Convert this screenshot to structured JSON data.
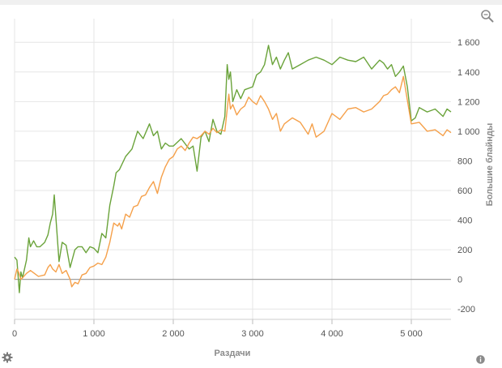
{
  "icons": {
    "zoom": "zoom-icon",
    "settings": "gear-icon",
    "info": "info-icon"
  },
  "colors": {
    "green": "#6aa33a",
    "orange": "#f5a04a",
    "zero_line": "#a0a0a0",
    "grid": "#e6e6e6"
  },
  "chart_data": {
    "type": "line",
    "title": "",
    "xlabel": "Раздачи",
    "ylabel": "Большие блайнды",
    "xlim": [
      0,
      5500
    ],
    "ylim": [
      -270,
      1760
    ],
    "x_ticks": [
      0,
      1000,
      2000,
      3000,
      4000,
      5000
    ],
    "x_tick_labels": [
      "0",
      "1 000",
      "2 000",
      "3 000",
      "4 000",
      "5 000"
    ],
    "y_ticks": [
      -200,
      0,
      200,
      400,
      600,
      800,
      1000,
      1200,
      1400,
      1600
    ],
    "y_tick_labels": [
      "-200",
      "0",
      "200",
      "400",
      "600",
      "800",
      "1 000",
      "1 200",
      "1 400",
      "1 600"
    ],
    "y_axis_side": "right",
    "grid": true,
    "legend": "none",
    "series": [
      {
        "color": "#6aa33a",
        "x": [
          0,
          30,
          60,
          80,
          100,
          150,
          180,
          200,
          240,
          280,
          320,
          380,
          420,
          450,
          480,
          500,
          520,
          560,
          600,
          650,
          700,
          760,
          800,
          850,
          900,
          950,
          1000,
          1050,
          1100,
          1150,
          1200,
          1250,
          1280,
          1320,
          1400,
          1480,
          1550,
          1620,
          1700,
          1750,
          1800,
          1850,
          1900,
          1950,
          2000,
          2100,
          2200,
          2250,
          2300,
          2350,
          2400,
          2450,
          2500,
          2550,
          2600,
          2650,
          2680,
          2700,
          2720,
          2750,
          2800,
          2850,
          2900,
          3000,
          3050,
          3100,
          3150,
          3200,
          3250,
          3300,
          3350,
          3400,
          3450,
          3500,
          3600,
          3700,
          3800,
          3900,
          4000,
          4100,
          4200,
          4300,
          4400,
          4500,
          4600,
          4650,
          4700,
          4750,
          4800,
          4850,
          4900,
          4950,
          5000,
          5050,
          5100,
          5200,
          5300,
          5400,
          5450,
          5500
        ],
        "y": [
          150,
          130,
          -90,
          50,
          10,
          130,
          280,
          220,
          260,
          220,
          220,
          250,
          300,
          380,
          440,
          570,
          420,
          120,
          250,
          230,
          80,
          200,
          220,
          220,
          180,
          220,
          210,
          180,
          310,
          280,
          500,
          630,
          720,
          740,
          830,
          880,
          1000,
          950,
          1050,
          970,
          1000,
          880,
          920,
          900,
          900,
          950,
          880,
          900,
          730,
          960,
          1000,
          930,
          1080,
          1000,
          980,
          1100,
          1450,
          1350,
          1400,
          1200,
          1280,
          1220,
          1280,
          1300,
          1380,
          1400,
          1450,
          1580,
          1450,
          1500,
          1420,
          1480,
          1530,
          1420,
          1450,
          1480,
          1500,
          1480,
          1450,
          1500,
          1480,
          1470,
          1500,
          1420,
          1480,
          1460,
          1420,
          1450,
          1370,
          1400,
          1440,
          1300,
          1070,
          1090,
          1160,
          1130,
          1150,
          1100,
          1150,
          1130
        ]
      },
      {
        "color": "#f5a04a",
        "x": [
          0,
          30,
          50,
          80,
          100,
          150,
          200,
          250,
          300,
          380,
          420,
          450,
          480,
          520,
          560,
          600,
          650,
          700,
          720,
          760,
          800,
          850,
          900,
          950,
          1000,
          1050,
          1100,
          1150,
          1200,
          1250,
          1300,
          1320,
          1350,
          1400,
          1450,
          1500,
          1550,
          1600,
          1650,
          1700,
          1750,
          1800,
          1850,
          1900,
          1950,
          2000,
          2050,
          2100,
          2150,
          2200,
          2250,
          2300,
          2350,
          2400,
          2450,
          2500,
          2550,
          2600,
          2650,
          2700,
          2720,
          2750,
          2800,
          2850,
          2900,
          2950,
          3000,
          3050,
          3100,
          3150,
          3200,
          3250,
          3300,
          3350,
          3400,
          3450,
          3500,
          3600,
          3700,
          3750,
          3800,
          3900,
          4000,
          4100,
          4200,
          4300,
          4400,
          4500,
          4600,
          4650,
          4700,
          4750,
          4800,
          4850,
          4900,
          5000,
          5100,
          5200,
          5300,
          5400,
          5450,
          5500
        ],
        "y": [
          0,
          70,
          50,
          0,
          10,
          40,
          60,
          40,
          20,
          30,
          80,
          100,
          70,
          50,
          100,
          40,
          60,
          0,
          -50,
          -20,
          -30,
          30,
          40,
          80,
          90,
          110,
          100,
          150,
          250,
          380,
          360,
          380,
          340,
          440,
          420,
          490,
          500,
          560,
          570,
          620,
          660,
          580,
          690,
          760,
          810,
          830,
          880,
          900,
          870,
          920,
          960,
          950,
          970,
          1000,
          980,
          1020,
          990,
          1010,
          1000,
          1250,
          1150,
          1180,
          1110,
          1150,
          1170,
          1230,
          1200,
          1180,
          1240,
          1200,
          1150,
          1080,
          1120,
          1000,
          1050,
          1070,
          1090,
          1060,
          980,
          1050,
          960,
          1000,
          1120,
          1080,
          1150,
          1160,
          1130,
          1150,
          1200,
          1240,
          1250,
          1280,
          1300,
          1260,
          1370,
          1050,
          1060,
          1000,
          1010,
          970,
          1010,
          990
        ]
      }
    ]
  }
}
